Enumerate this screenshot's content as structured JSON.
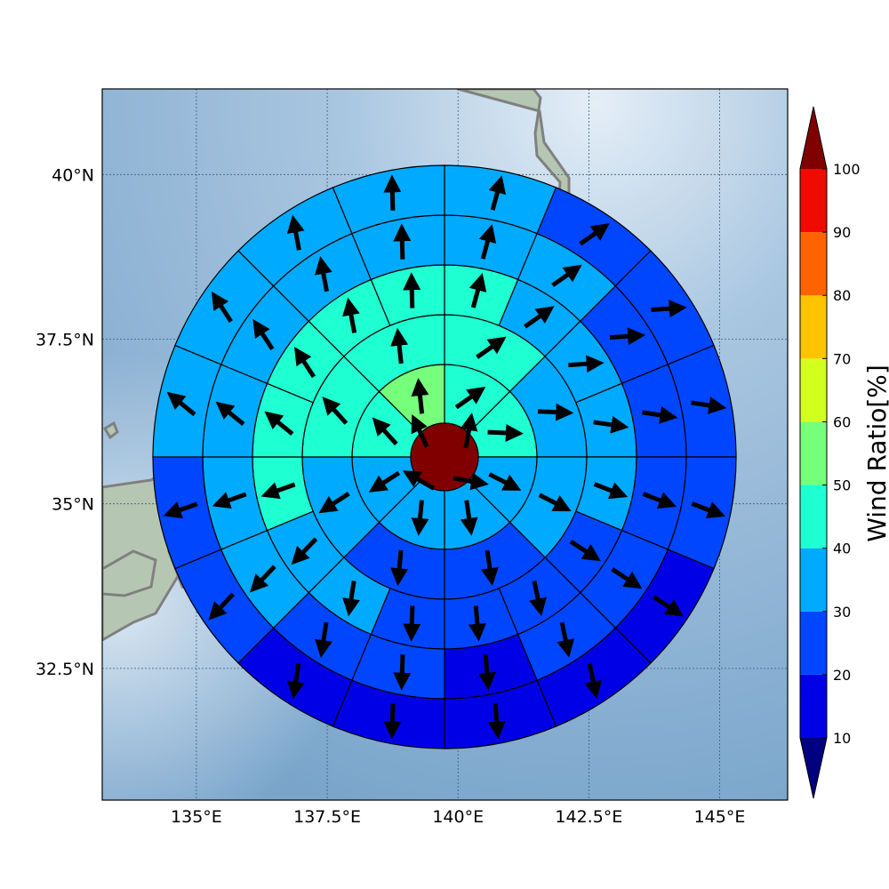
{
  "map": {
    "lon_ticks": [
      "135°E",
      "137.5°E",
      "140°E",
      "142.5°E",
      "145°E"
    ],
    "lat_ticks": [
      "40°N",
      "37.5°N",
      "35°N",
      "32.5°N"
    ],
    "lon_values": [
      135,
      137.5,
      140,
      142.5,
      145
    ],
    "lat_values": [
      40,
      37.5,
      35,
      32.5
    ],
    "lon_range": [
      133.2,
      146.3
    ],
    "lat_range": [
      30.5,
      41.3
    ],
    "gridlines": true,
    "colors": {
      "sea_light": "#d8e6f2",
      "sea_dark": "#7ba6cc",
      "land": "#b3c6b0",
      "coastline": "#808080",
      "cell_edge": "#000000",
      "arrow": "#000000",
      "center": "#800000"
    }
  },
  "colorbar": {
    "title": "Wind Ratio[%]",
    "levels": [
      "10",
      "20",
      "30",
      "40",
      "50",
      "60",
      "70",
      "80",
      "90",
      "100"
    ],
    "colors": [
      "#0000e6",
      "#0046ff",
      "#00aaff",
      "#1effd2",
      "#76ff7a",
      "#d2ff1e",
      "#ffc300",
      "#ff6300",
      "#f00b00"
    ],
    "under_color": "#000080",
    "over_color": "#800000",
    "extend": "both"
  },
  "chart_data": {
    "type": "polar-grid",
    "center_value": 100,
    "ring_sectors": [
      4,
      8,
      8,
      16,
      16,
      16
    ],
    "rings": [
      [
        60,
        40,
        40,
        50
      ],
      [
        40,
        40,
        30,
        30,
        30,
        30,
        40,
        50
      ],
      [
        40,
        30,
        30,
        20,
        20,
        30,
        40,
        40
      ],
      [
        40,
        30,
        30,
        30,
        30,
        20,
        20,
        20,
        20,
        30,
        30,
        40,
        40,
        40,
        40,
        40
      ],
      [
        30,
        30,
        20,
        20,
        20,
        20,
        20,
        10,
        20,
        20,
        30,
        30,
        30,
        30,
        30,
        30
      ],
      [
        30,
        20,
        20,
        20,
        20,
        10,
        10,
        10,
        10,
        10,
        20,
        20,
        30,
        30,
        30,
        30
      ]
    ]
  }
}
